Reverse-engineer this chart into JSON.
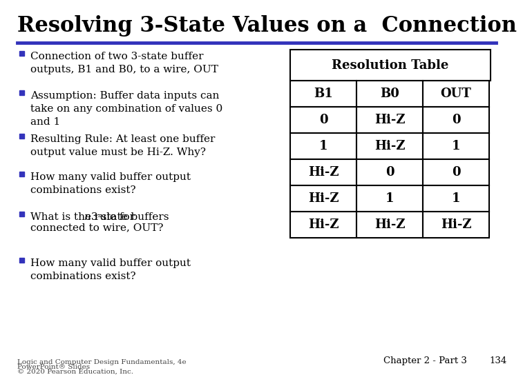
{
  "title": "Resolving 3-State Values on a  Connection",
  "title_fontsize": 22,
  "title_color": "#000000",
  "title_font": "serif",
  "bg_color": "#ffffff",
  "accent_line_color": "#3333bb",
  "bullet_color": "#3333bb",
  "bullet_points": [
    "Connection of two 3-state buffer\noutputs, B1 and B0, to a wire, OUT",
    "Assumption: Buffer data inputs can\ntake on any combination of values 0\nand 1",
    "Resulting Rule: At least one buffer\noutput value must be Hi-Z. Why?",
    "How many valid buffer output\ncombinations exist?",
    "What is the rule for n 3-state buffers\nconnected to wire, OUT?",
    "How many valid buffer output\ncombinations exist?"
  ],
  "table_header": "Resolution Table",
  "table_cols": [
    "B1",
    "B0",
    "OUT"
  ],
  "table_rows": [
    [
      "0",
      "Hi-Z",
      "0"
    ],
    [
      "1",
      "Hi-Z",
      "1"
    ],
    [
      "Hi-Z",
      "0",
      "0"
    ],
    [
      "Hi-Z",
      "1",
      "1"
    ],
    [
      "Hi-Z",
      "Hi-Z",
      "Hi-Z"
    ]
  ],
  "table_border_color": "#000000",
  "footer_left1": "Logic and Computer Design Fundamentals, 4e",
  "footer_left2": "PowerPoint® Slides",
  "footer_left3": "© 2020 Pearson Education, Inc.",
  "footer_right": "Chapter 2 - Part 3",
  "footer_page": "134",
  "text_color": "#000000"
}
